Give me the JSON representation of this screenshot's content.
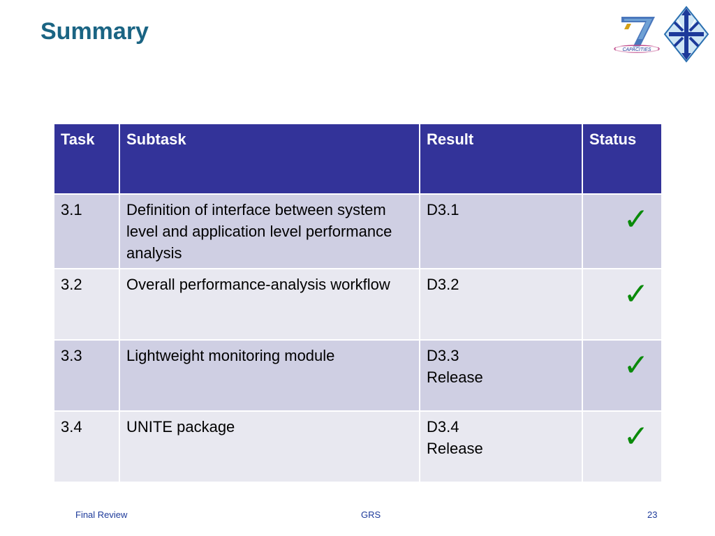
{
  "slide": {
    "title": "Summary",
    "logos": {
      "fp7_text": "CAPACITIES",
      "fp7_icon": "fp7-seven-logo",
      "unite_icon": "unite-logo"
    }
  },
  "table": {
    "headers": [
      "Task",
      "Subtask",
      "Result",
      "Status"
    ],
    "rows": [
      {
        "task": "3.1",
        "subtask": "Definition of interface between system level and application level performance analysis",
        "result_lines": [
          "D3.1"
        ],
        "status": "✓"
      },
      {
        "task": "3.2",
        "subtask": "Overall performance-analysis workflow",
        "result_lines": [
          "D3.2"
        ],
        "status": "✓"
      },
      {
        "task": "3.3",
        "subtask": "Lightweight monitoring module",
        "result_lines": [
          "D3.3",
          "Release"
        ],
        "status": "✓"
      },
      {
        "task": "3.4",
        "subtask": "UNITE package",
        "result_lines": [
          "D3.4",
          "Release"
        ],
        "status": "✓"
      }
    ],
    "status_icon": "checkmark-icon"
  },
  "footer": {
    "left": "Final Review",
    "center": "GRS",
    "right": "23"
  },
  "colors": {
    "title": "#1a6483",
    "header_bg": "#333399",
    "row_odd_bg": "#cfcfe3",
    "row_even_bg": "#e8e8f0",
    "check": "#0a8a0a",
    "footer_text": "#1d3a9a"
  }
}
